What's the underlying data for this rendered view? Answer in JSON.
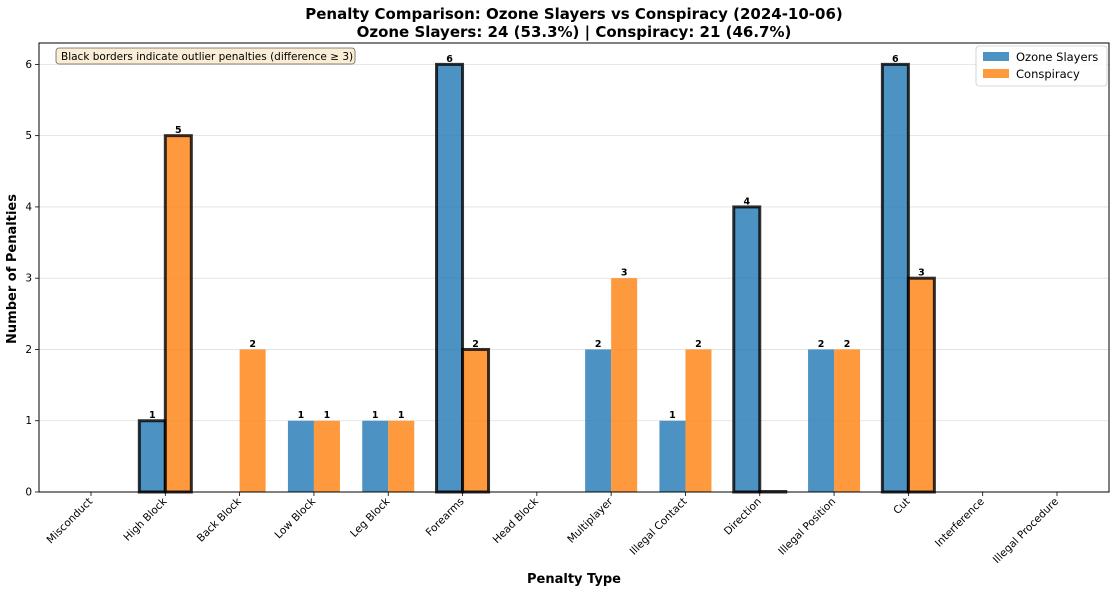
{
  "chart_data": {
    "type": "bar",
    "title": "Penalty Comparison: Ozone Slayers vs Conspiracy (2024-10-06)",
    "subtitle": "Ozone Slayers: 24 (53.3%) | Conspiracy: 21 (46.7%)",
    "xlabel": "Penalty Type",
    "ylabel": "Number of Penalties",
    "ylim": [
      0,
      6.3
    ],
    "yticks": [
      "0",
      "1",
      "2",
      "3",
      "4",
      "5",
      "6"
    ],
    "grid": "y",
    "legend_position": "top-right",
    "note": "Black borders indicate outlier penalties (difference ≥ 3)",
    "categories": [
      "Misconduct",
      "High Block",
      "Back Block",
      "Low Block",
      "Leg Block",
      "Forearms",
      "Head Block",
      "Multiplayer",
      "Illegal Contact",
      "Direction",
      "Illegal Position",
      "Cut",
      "Interference",
      "Illegal Procedure"
    ],
    "outliers": [
      false,
      true,
      false,
      false,
      false,
      true,
      false,
      false,
      false,
      true,
      false,
      true,
      false,
      false
    ],
    "series": [
      {
        "name": "Ozone Slayers",
        "color": "#1f77b4",
        "values": [
          0,
          1,
          0,
          1,
          1,
          6,
          0,
          2,
          1,
          4,
          2,
          6,
          0,
          0
        ]
      },
      {
        "name": "Conspiracy",
        "color": "#ff7f0e",
        "values": [
          0,
          5,
          2,
          1,
          1,
          2,
          0,
          3,
          2,
          0,
          2,
          3,
          0,
          0
        ]
      }
    ]
  }
}
